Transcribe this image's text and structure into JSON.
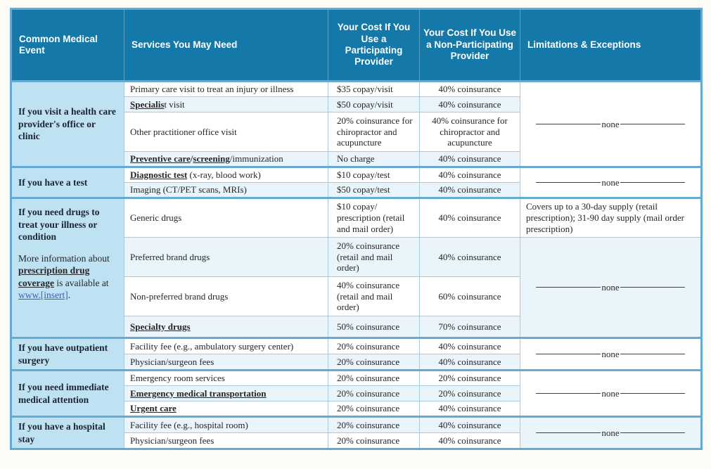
{
  "labels": {
    "none": "none"
  },
  "colors": {
    "header_bg": "#1478a8",
    "event_cell_bg": "#bfe2f3",
    "row_stripe_bg": "#eaf4fb",
    "table_border": "#66a9d3",
    "link_blue": "#3a5dbe"
  },
  "header": {
    "event": "Common Medical Event",
    "services": "Services You May Need",
    "participating": "Your Cost If You Use a Participating Provider",
    "non_participating": "Your Cost If You Use a Non-Participating Provider",
    "limitations": "Limitations & Exceptions"
  },
  "groups": [
    {
      "event": [
        {
          "t": "If you visit a health care ",
          "s": "b"
        },
        {
          "t": "provider's",
          "s": "bu"
        },
        {
          "t": " office or clinic",
          "s": "b"
        }
      ],
      "rows": [
        {
          "service": [
            {
              "t": "Primary care visit to treat an injury or illness",
              "s": "p"
            }
          ],
          "p": "$35 copay/visit",
          "np": "40% coinsurance"
        },
        {
          "service": [
            {
              "t": "Specialis",
              "s": "term"
            },
            {
              "t": "t visit",
              "s": "p"
            }
          ],
          "p": "$50 copay/visit",
          "np": "40% coinsurance"
        },
        {
          "service": [
            {
              "t": "Other practitioner office visit",
              "s": "p"
            }
          ],
          "p": "20% coinsurance for chiropractor and acupuncture",
          "np": "40% coinsurance for chiropractor and acupuncture"
        },
        {
          "service": [
            {
              "t": "Preventive care",
              "s": "term"
            },
            {
              "t": "/",
              "s": "b"
            },
            {
              "t": "screening",
              "s": "term"
            },
            {
              "t": "/immunization",
              "s": "p"
            }
          ],
          "p": "No charge",
          "np": "40% coinsurance"
        }
      ]
    },
    {
      "event": [
        {
          "t": "If you have a test",
          "s": "b"
        }
      ],
      "rows": [
        {
          "service": [
            {
              "t": "Diagnostic test",
              "s": "term"
            },
            {
              "t": " (x-ray, blood work)",
              "s": "p"
            }
          ],
          "p": "$10 copay/test",
          "np": "40% coinsurance"
        },
        {
          "service": [
            {
              "t": "Imaging (CT/PET scans, MRIs)",
              "s": "p"
            }
          ],
          "p": "$50 copay/test",
          "np": "40% coinsurance"
        }
      ]
    },
    {
      "event": [
        {
          "t": "If you need drugs to treat your illness or condition",
          "s": "b"
        }
      ],
      "event_note": [
        {
          "t": "More information about ",
          "s": "p"
        },
        {
          "t": "prescription drug coverage",
          "s": "term"
        },
        {
          "t": " is available at ",
          "s": "p"
        },
        {
          "t": "www.",
          "s": "link"
        },
        {
          "t": "[insert]",
          "s": "link",
          "w": 1
        },
        {
          "t": ".",
          "s": "p"
        }
      ],
      "rows": [
        {
          "service": [
            {
              "t": "Generic drugs",
              "s": "p"
            }
          ],
          "p": "$10 copay/ prescription (retail and mail order)",
          "np": "40% coinsurance",
          "lim": "Covers up to a 30-day supply (retail prescription); 31-90 day supply (mail order prescription)"
        },
        {
          "service": [
            {
              "t": "Preferred brand drugs",
              "s": "p"
            }
          ],
          "p": "20% coinsurance (retail and mail order)",
          "np": "40% coinsurance"
        },
        {
          "service": [
            {
              "t": "Non-preferred brand drugs",
              "s": "p"
            }
          ],
          "p": "40% coinsurance (retail and mail order)",
          "np": "60% coinsurance"
        },
        {
          "service": [
            {
              "t": "Specialty drugs",
              "s": "term"
            }
          ],
          "p": "50% coinsurance",
          "np": "70% coinsurance"
        }
      ]
    },
    {
      "event": [
        {
          "t": "If you have outpatient surgery",
          "s": "b"
        }
      ],
      "rows": [
        {
          "service": [
            {
              "t": "Facility fee (e.g., ambulatory surgery center)",
              "s": "p"
            }
          ],
          "p": "20% coinsurance",
          "np": "40% coinsurance"
        },
        {
          "service": [
            {
              "t": "Physician/surgeon fees",
              "s": "p"
            }
          ],
          "p": "20% coinsurance",
          "np": "40% coinsurance"
        }
      ]
    },
    {
      "event": [
        {
          "t": "If you need immediate medical attention",
          "s": "b"
        }
      ],
      "rows": [
        {
          "service": [
            {
              "t": "Emergency room services",
              "s": "p"
            }
          ],
          "p": "20% coinsurance",
          "np": "20% coinsurance"
        },
        {
          "service": [
            {
              "t": "Emergency medical transportation",
              "s": "term"
            }
          ],
          "p": "20% coinsurance",
          "np": "20% coinsurance"
        },
        {
          "service": [
            {
              "t": "Urgent care",
              "s": "term"
            }
          ],
          "p": "20% coinsurance",
          "np": "40% coinsurance"
        }
      ]
    },
    {
      "event": [
        {
          "t": "If you have a hospital stay",
          "s": "b"
        }
      ],
      "rows": [
        {
          "service": [
            {
              "t": "Facility fee (e.g., hospital room)",
              "s": "p"
            }
          ],
          "p": "20% coinsurance",
          "np": "40% coinsurance"
        },
        {
          "service": [
            {
              "t": "Physician/surgeon fees",
              "s": "p"
            }
          ],
          "p": "20% coinsurance",
          "np": "40% coinsurance"
        }
      ]
    }
  ]
}
